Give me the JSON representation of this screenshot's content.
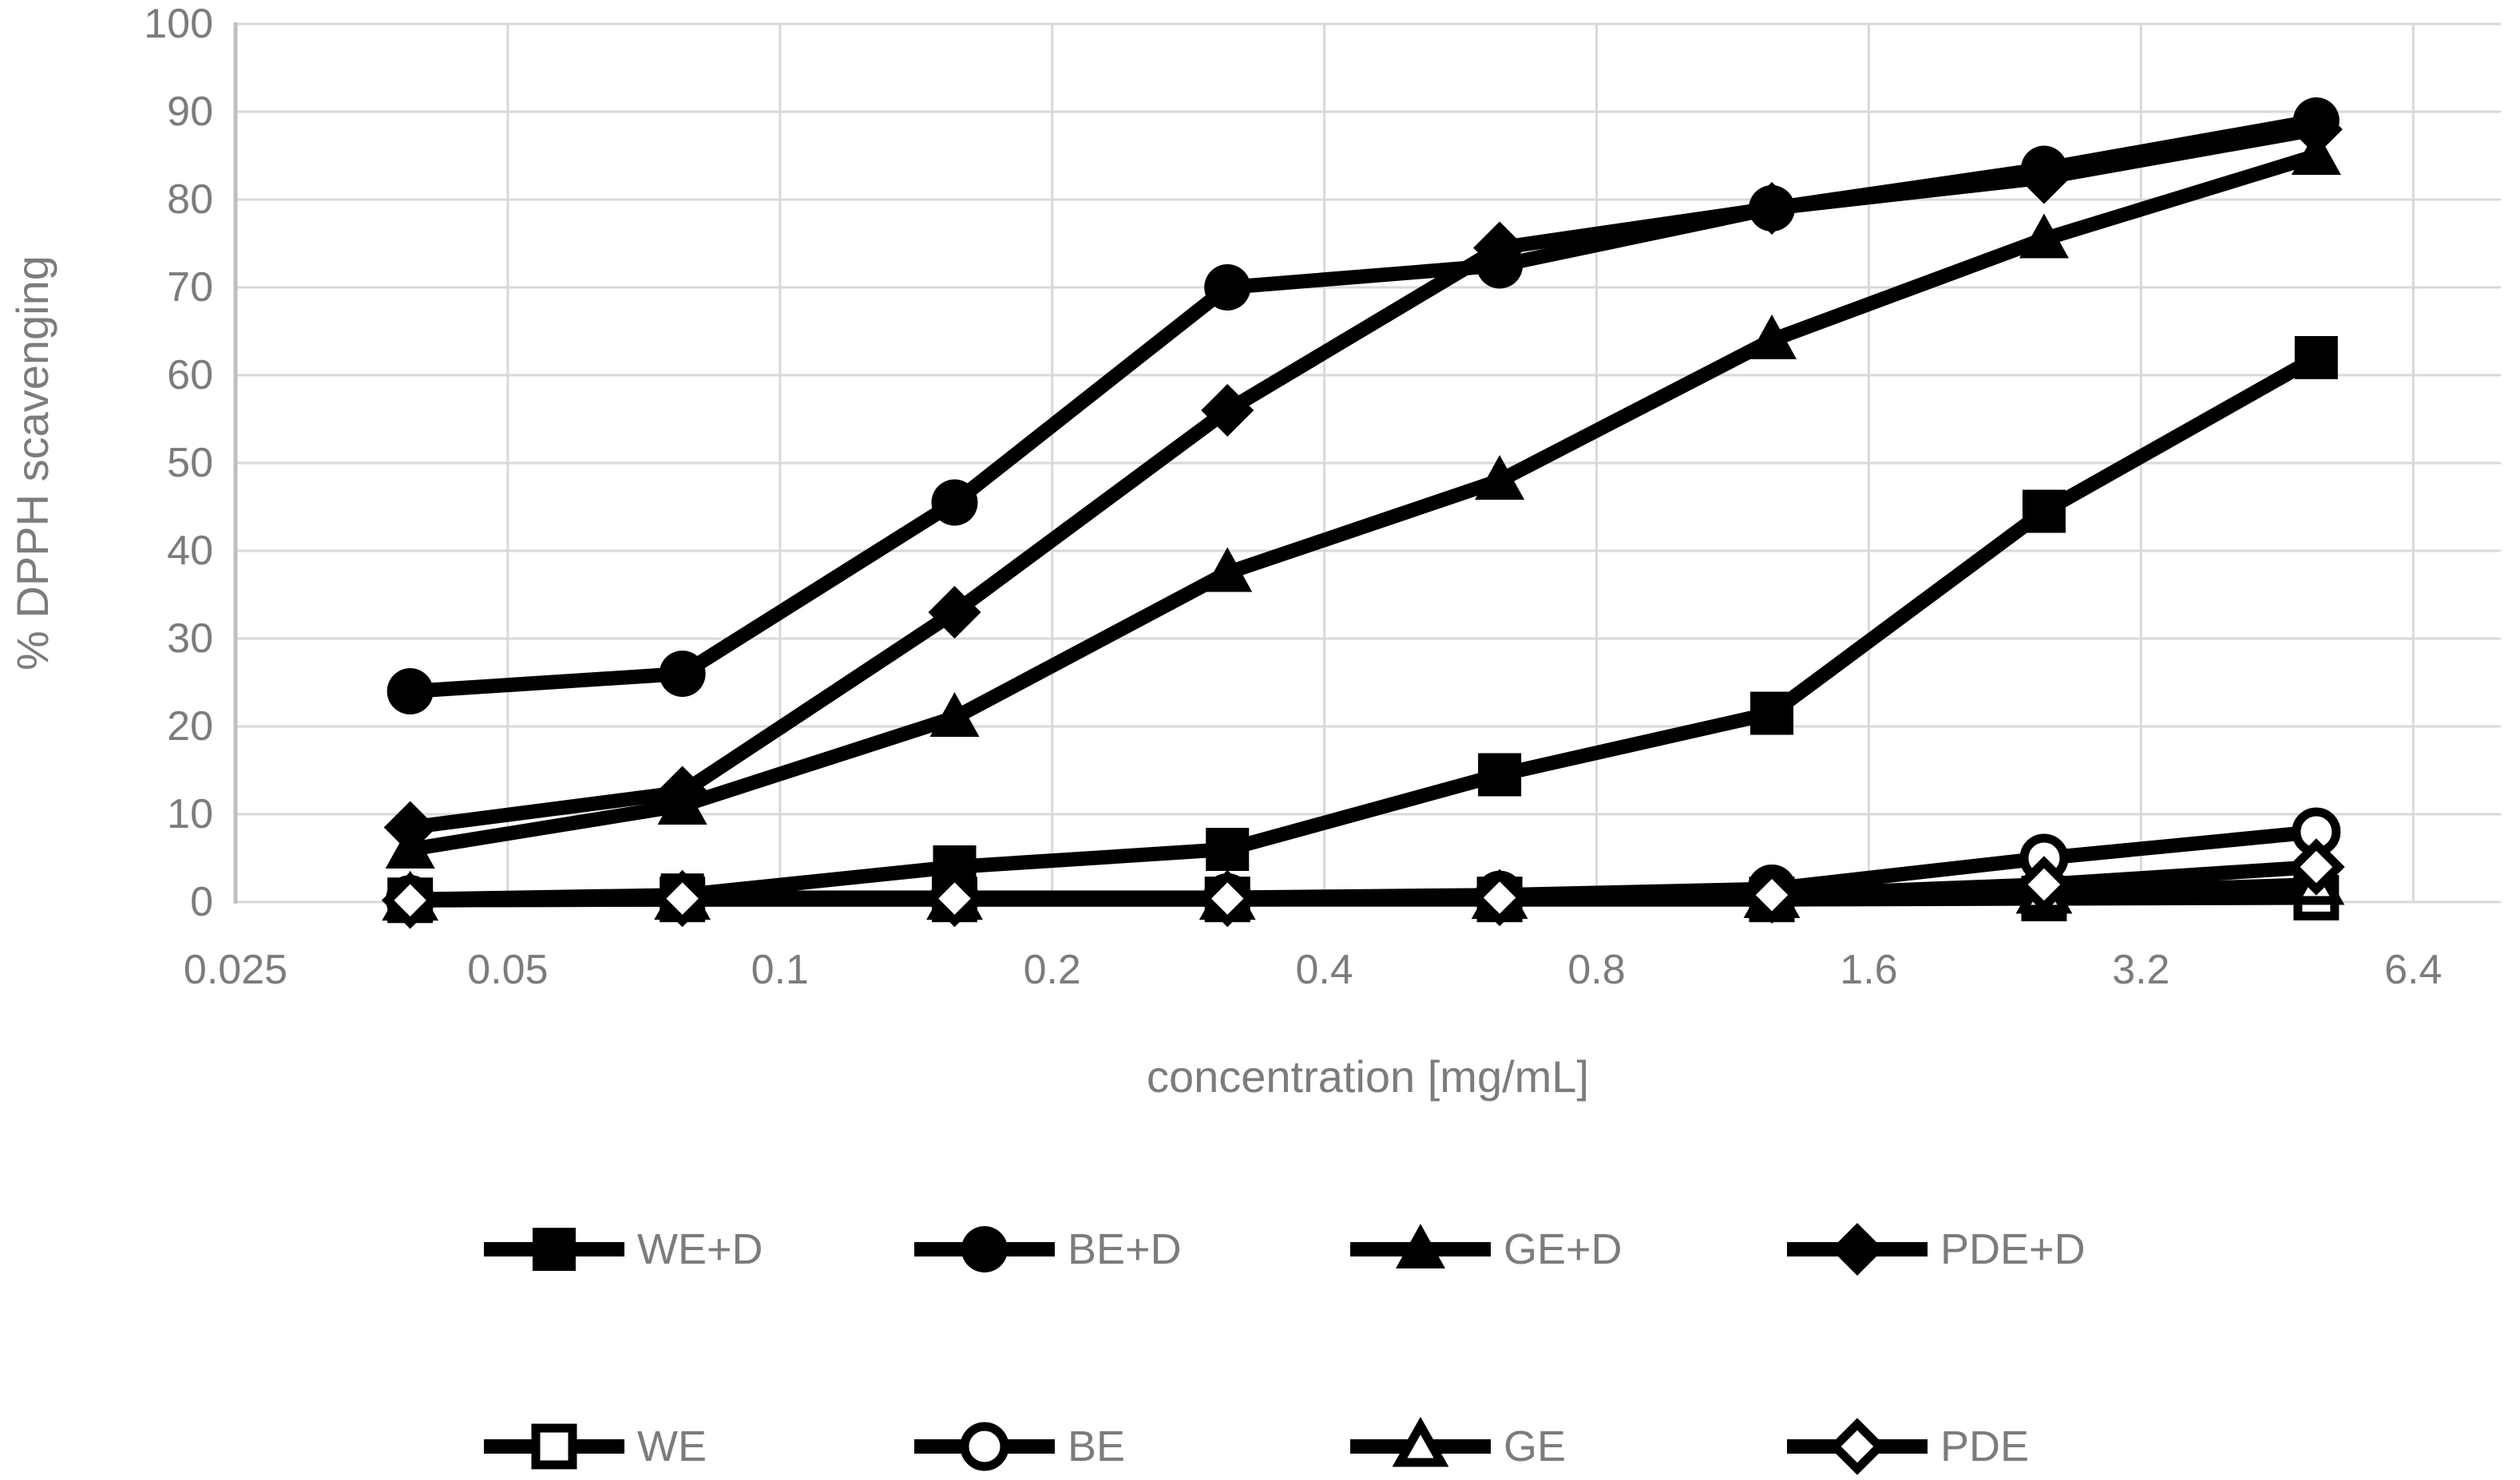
{
  "chart_data": {
    "type": "line",
    "title": "",
    "xlabel": "concentration [mg/mL]",
    "ylabel": "% DPPH scavenging",
    "x_scale": "log2",
    "x_axis_range": [
      0.025,
      8
    ],
    "x_ticks": [
      0.025,
      0.05,
      0.1,
      0.2,
      0.4,
      0.8,
      1.6,
      3.2,
      6.4
    ],
    "x_tick_labels": [
      "0.025",
      "0.05",
      "0.1",
      "0.2",
      "0.4",
      "0.8",
      "1.6",
      "3.2",
      "6.4"
    ],
    "ylim": [
      0,
      100
    ],
    "y_tick_step": 10,
    "grid": true,
    "x": [
      0.039,
      0.078,
      0.156,
      0.3125,
      0.625,
      1.25,
      2.5,
      5
    ],
    "series": [
      {
        "name": "WE+D",
        "marker": "square",
        "fill": "filled",
        "values": [
          0.3,
          0.8,
          4,
          6,
          14.5,
          21.5,
          44.5,
          62
        ]
      },
      {
        "name": "BE+D",
        "marker": "circle",
        "fill": "filled",
        "values": [
          24,
          26,
          45.5,
          70,
          72.5,
          79,
          83.5,
          89
        ]
      },
      {
        "name": "GE+D",
        "marker": "triangle",
        "fill": "filled",
        "values": [
          6,
          11,
          21,
          37.5,
          48,
          64,
          75.5,
          85
        ]
      },
      {
        "name": "PDE+D",
        "marker": "diamond",
        "fill": "filled",
        "values": [
          8.5,
          12.5,
          33,
          56,
          74.5,
          79,
          82.5,
          88
        ]
      },
      {
        "name": "WE",
        "marker": "square",
        "fill": "open",
        "values": [
          0.2,
          0.3,
          0.3,
          0.3,
          0.3,
          0.3,
          0.4,
          0.5
        ]
      },
      {
        "name": "BE",
        "marker": "circle",
        "fill": "open",
        "values": [
          0.3,
          0.5,
          0.5,
          0.5,
          0.8,
          1.5,
          5,
          8
        ]
      },
      {
        "name": "GE",
        "marker": "triangle",
        "fill": "open",
        "values": [
          0.2,
          0.3,
          0.3,
          0.3,
          0.4,
          0.5,
          1,
          2
        ]
      },
      {
        "name": "PDE",
        "marker": "diamond",
        "fill": "open",
        "values": [
          0.2,
          0.4,
          0.4,
          0.4,
          0.5,
          0.8,
          2,
          4
        ]
      }
    ],
    "legend": {
      "position": "bottom",
      "rows": [
        [
          "WE+D",
          "BE+D",
          "GE+D",
          "PDE+D"
        ],
        [
          "WE",
          "BE",
          "GE",
          "PDE"
        ]
      ]
    },
    "colors": {
      "series": "#000000",
      "grid": "#d9d9d9",
      "axis_line": "#bfbfbf",
      "text": "#7c7c7c"
    }
  }
}
